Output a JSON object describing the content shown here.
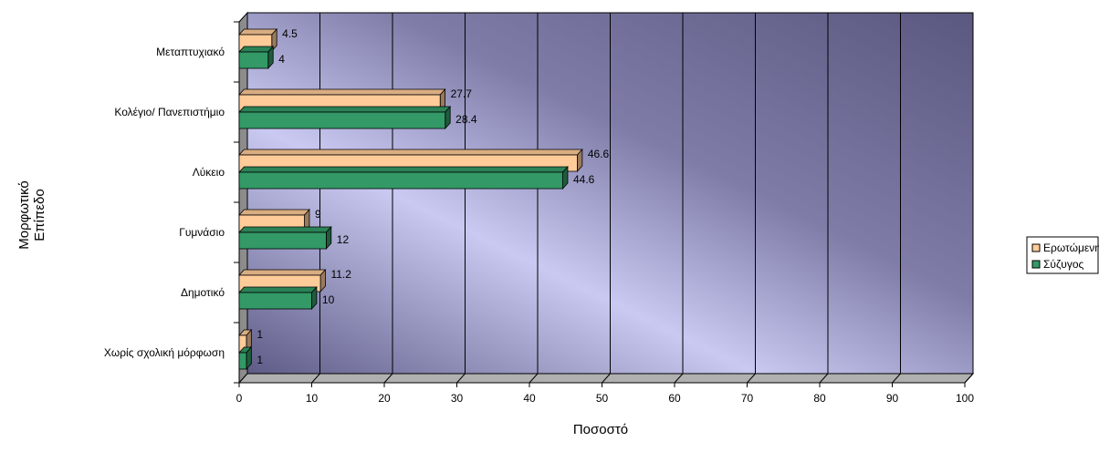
{
  "chart_data": {
    "type": "bar",
    "orientation": "horizontal",
    "categories": [
      "Χωρίς σχολική μόρφωση",
      "Δημοτικό",
      "Γυμνάσιο",
      "Λύκειο",
      "Κολέγιο/ Πανεπιστήμιο",
      "Μεταπτυχιακό"
    ],
    "series": [
      {
        "name": "Ερωτώμενη",
        "values": [
          1,
          11.2,
          9,
          46.6,
          27.7,
          4.5
        ],
        "color": "#FFCC99"
      },
      {
        "name": "Σύζυγος",
        "values": [
          1,
          10,
          12,
          44.6,
          28.4,
          4
        ],
        "color": "#339966"
      }
    ],
    "xlim": [
      0,
      100
    ],
    "xticks": [
      0,
      10,
      20,
      30,
      40,
      50,
      60,
      70,
      80,
      90,
      100
    ],
    "title": "",
    "xlabel": "Ποσοστό",
    "ylabel_lines": [
      "Μορφωτικό",
      "Επίπεδο"
    ],
    "legend_position": "right",
    "grid": true,
    "background": "gradient-blue-purple"
  }
}
